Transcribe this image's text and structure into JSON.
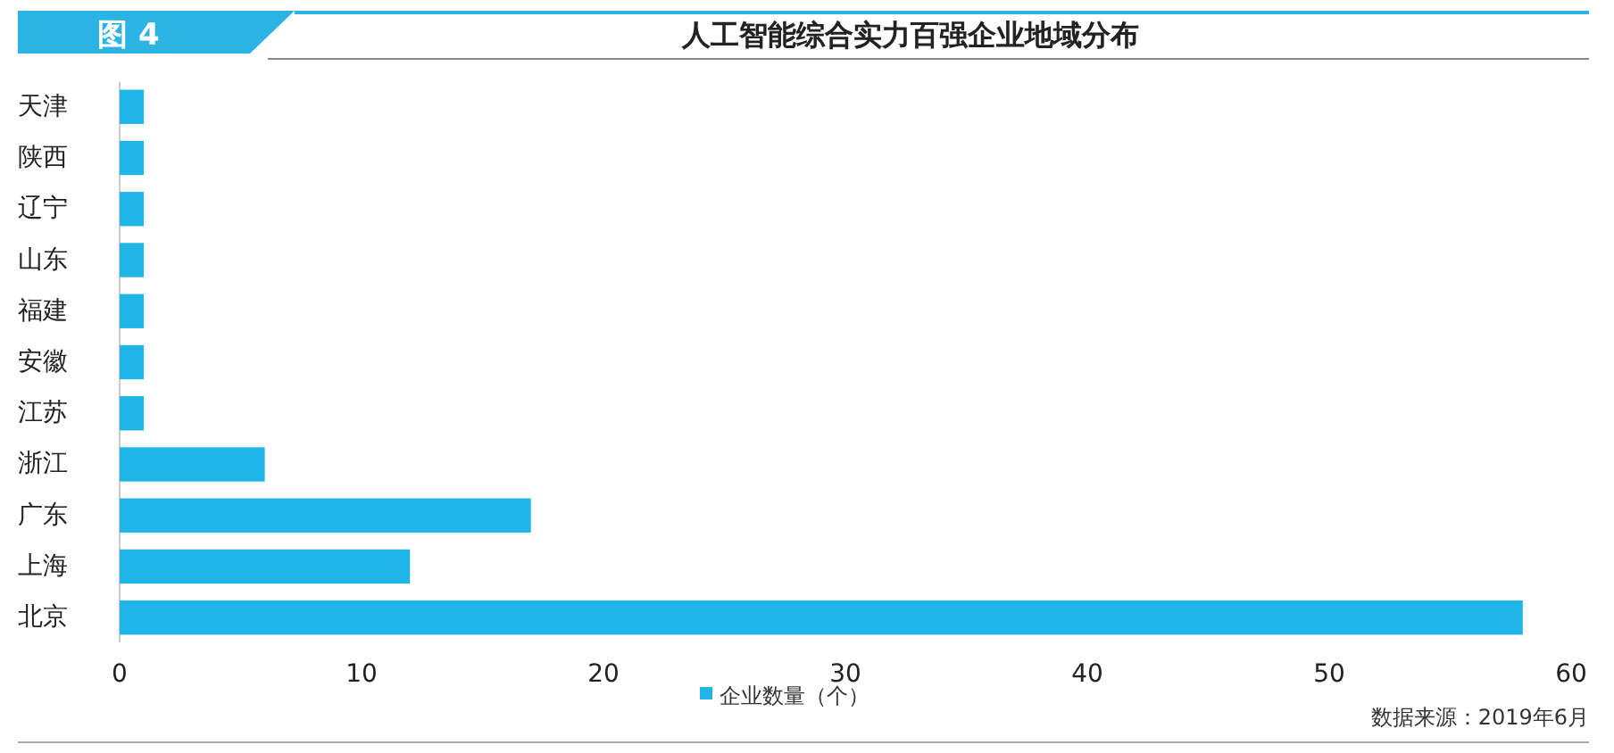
{
  "chart_data": {
    "type": "bar",
    "orientation": "horizontal",
    "title": "人工智能综合实力百强企业地域分布",
    "categories": [
      "天津",
      "陕西",
      "辽宁",
      "山东",
      "福建",
      "安徽",
      "江苏",
      "浙江",
      "广东",
      "上海",
      "北京"
    ],
    "series": [
      {
        "name": "企业数量（个）",
        "color": "#1fb5e6",
        "values": [
          1,
          1,
          1,
          1,
          1,
          1,
          1,
          6,
          17,
          12,
          58
        ]
      }
    ],
    "xlim": [
      0,
      60
    ],
    "xticks": [
      0,
      10,
      20,
      30,
      40,
      50,
      60
    ],
    "grid": false,
    "legend": "bottom",
    "annotations": [
      "图 4",
      "数据来源：2019年6月"
    ]
  }
}
